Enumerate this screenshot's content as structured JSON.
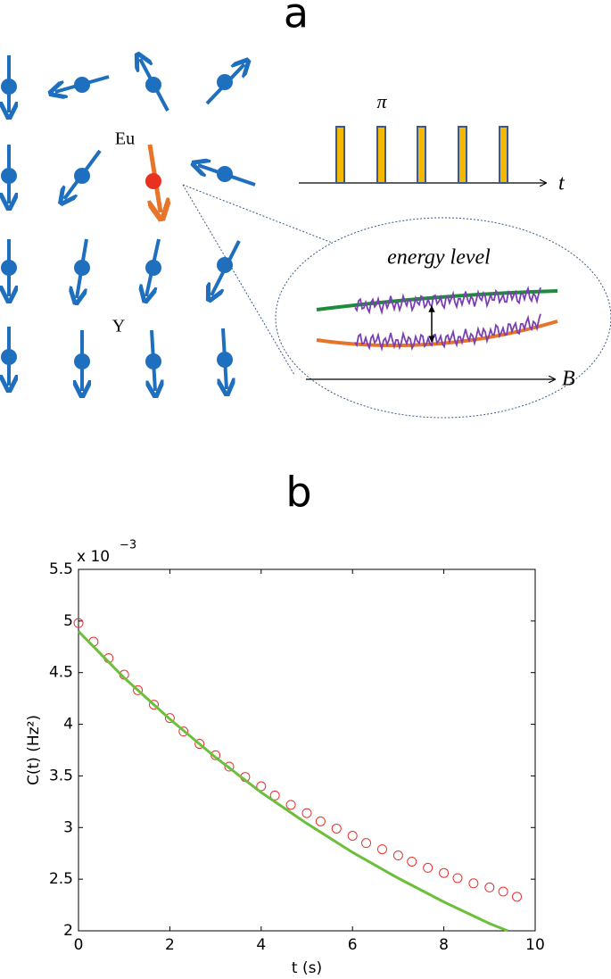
{
  "panel_a": {
    "label": "a",
    "eu": "Eu",
    "y": "Y",
    "pi": "π",
    "t": "t",
    "energy": "energy level",
    "b": "B"
  },
  "panel_b": {
    "label": "b"
  },
  "chart_data": {
    "type": "scatter",
    "xlabel": "t (s)",
    "ylabel": "C(t)  (Hz²)",
    "multiplier": "x 10",
    "exponent": "−3",
    "xlim": [
      0,
      10
    ],
    "ylim": [
      2,
      5.5
    ],
    "xticks": [
      0,
      2,
      4,
      6,
      8,
      10
    ],
    "yticks": [
      2,
      2.5,
      3,
      3.5,
      4,
      4.5,
      5,
      5.5
    ],
    "series": [
      {
        "color": "#e8312f",
        "marker": "circle",
        "x": [
          0,
          0.33,
          0.66,
          1.0,
          1.3,
          1.65,
          2.0,
          2.3,
          2.65,
          3.0,
          3.3,
          3.65,
          4.0,
          4.3,
          4.65,
          5.0,
          5.3,
          5.65,
          6.0,
          6.3,
          6.65,
          7.0,
          7.3,
          7.65,
          8.0,
          8.3,
          8.65,
          9.0,
          9.3,
          9.6
        ],
        "values": [
          4.98,
          4.8,
          4.64,
          4.48,
          4.33,
          4.19,
          4.06,
          3.93,
          3.81,
          3.7,
          3.59,
          3.49,
          3.4,
          3.31,
          3.22,
          3.14,
          3.06,
          2.99,
          2.92,
          2.85,
          2.79,
          2.73,
          2.67,
          2.61,
          2.56,
          2.51,
          2.46,
          2.42,
          2.38,
          2.33
        ]
      },
      {
        "color": "#6bbf3a",
        "marker": "line",
        "x": [
          0,
          1,
          2,
          3,
          4,
          5,
          6,
          7,
          8,
          9,
          9.4
        ],
        "values": [
          4.9,
          4.45,
          4.05,
          3.68,
          3.34,
          3.04,
          2.76,
          2.51,
          2.28,
          2.07,
          2.0
        ]
      }
    ]
  }
}
